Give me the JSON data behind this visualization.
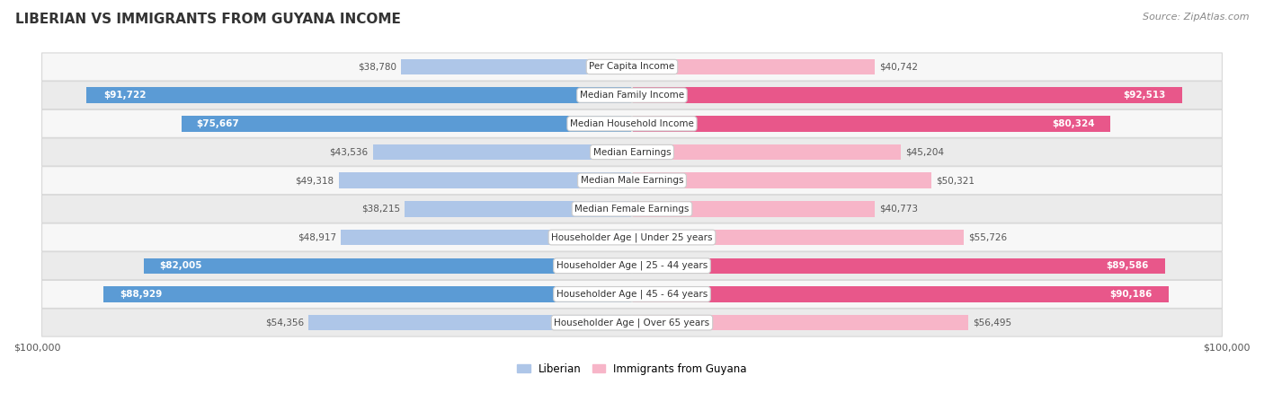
{
  "title": "LIBERIAN VS IMMIGRANTS FROM GUYANA INCOME",
  "source": "Source: ZipAtlas.com",
  "categories": [
    "Per Capita Income",
    "Median Family Income",
    "Median Household Income",
    "Median Earnings",
    "Median Male Earnings",
    "Median Female Earnings",
    "Householder Age | Under 25 years",
    "Householder Age | 25 - 44 years",
    "Householder Age | 45 - 64 years",
    "Householder Age | Over 65 years"
  ],
  "liberian_values": [
    38780,
    91722,
    75667,
    43536,
    49318,
    38215,
    48917,
    82005,
    88929,
    54356
  ],
  "guyana_values": [
    40742,
    92513,
    80324,
    45204,
    50321,
    40773,
    55726,
    89586,
    90186,
    56495
  ],
  "liberian_labels": [
    "$38,780",
    "$91,722",
    "$75,667",
    "$43,536",
    "$49,318",
    "$38,215",
    "$48,917",
    "$82,005",
    "$88,929",
    "$54,356"
  ],
  "guyana_labels": [
    "$40,742",
    "$92,513",
    "$80,324",
    "$45,204",
    "$50,321",
    "$40,773",
    "$55,726",
    "$89,586",
    "$90,186",
    "$56,495"
  ],
  "max_value": 100000,
  "liberian_color_light": "#aec6e8",
  "liberian_color_dark": "#5b9bd5",
  "guyana_color_light": "#f7b5c8",
  "guyana_color_dark": "#e8578a",
  "row_bg_light": "#f7f7f7",
  "row_bg_dark": "#ebebeb",
  "row_border": "#d8d8d8",
  "label_inside_color": "#ffffff",
  "label_outside_color": "#555555",
  "threshold_liberian": 65000,
  "threshold_guyana": 65000,
  "title_fontsize": 11,
  "source_fontsize": 8,
  "label_fontsize": 7.5,
  "cat_fontsize": 7.5
}
